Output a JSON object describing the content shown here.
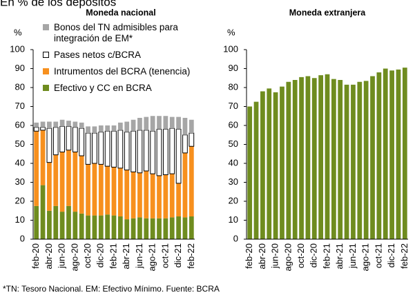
{
  "title": "En % de los depósitos",
  "note": "*TN: Tesoro Nacional. EM: Efectivo Mínimo. Fuente: BCRA",
  "chart_data": [
    {
      "type": "stacked_bar",
      "title": "Moneda nacional",
      "ylabel": "%",
      "categories": [
        "feb-20",
        null,
        "abr-20",
        null,
        "jun-20",
        null,
        "ago-20",
        null,
        "oct-20",
        null,
        "dic-20",
        null,
        "feb-21",
        null,
        "abr-21",
        null,
        "jun-21",
        null,
        "ago-21",
        null,
        "oct-21",
        null,
        "dic-21",
        null,
        "feb-22"
      ],
      "series": [
        {
          "name": "Efectivo y CC en BCRA",
          "color": "#6f8c1f",
          "values": [
            17.5,
            28.5,
            15,
            17.5,
            14.5,
            17.5,
            14.5,
            13.5,
            12.5,
            12.5,
            12.5,
            13,
            12.5,
            12,
            10.5,
            11,
            11.5,
            11,
            11,
            11,
            11,
            11.5,
            12,
            11.5,
            12
          ]
        },
        {
          "name": "Intrumentos del BCRA (tenencia)",
          "color": "#f7901e",
          "values": [
            39.5,
            29,
            25.5,
            27,
            31.5,
            29.5,
            31.5,
            30.5,
            27,
            27.5,
            27,
            25.5,
            25.5,
            25.5,
            26,
            24.5,
            23.5,
            25,
            23.5,
            22.5,
            23,
            23,
            17.5,
            34,
            37
          ]
        },
        {
          "name": "Pases netos c/BCRA",
          "color": "#ffffff",
          "values": [
            2,
            1.5,
            18,
            14.5,
            13.5,
            12.5,
            13,
            14.5,
            16.5,
            16,
            17,
            18.5,
            19,
            20,
            20,
            21.5,
            22.5,
            21.5,
            22.5,
            24.5,
            24,
            24,
            28.5,
            9.5,
            7
          ]
        },
        {
          "name": "Bonos del TN admisibles para integración de EM*",
          "color": "#a6a6a6",
          "values": [
            2.5,
            3,
            3.5,
            3,
            3.5,
            3,
            3,
            3,
            3.5,
            3.5,
            3.5,
            3,
            3,
            4,
            5.5,
            6,
            6.5,
            7,
            8,
            7,
            7,
            6,
            6.5,
            9,
            7
          ]
        }
      ],
      "ylim": [
        0,
        100
      ],
      "yticks": [
        0,
        10,
        20,
        30,
        40,
        50,
        60,
        70,
        80,
        90,
        100
      ],
      "legend": "top-left"
    },
    {
      "type": "bar",
      "title": "Moneda extranjera",
      "ylabel": "%",
      "categories": [
        "feb-20",
        null,
        "abr-20",
        null,
        "jun-20",
        null,
        "ago-20",
        null,
        "oct-20",
        null,
        "dic-20",
        null,
        "feb-21",
        null,
        "abr-21",
        null,
        "jun-21",
        null,
        "ago-21",
        null,
        "oct-21",
        null,
        "dic-21",
        null,
        "feb-22"
      ],
      "values": [
        70,
        72.5,
        78,
        79.5,
        77.5,
        80.5,
        83,
        84,
        85.5,
        86,
        85,
        86.5,
        87,
        84.5,
        84,
        81.5,
        81.5,
        83,
        83.5,
        86,
        88,
        90,
        89,
        89.5,
        90.5
      ],
      "color": "#6f8c1f",
      "ylim": [
        0,
        100
      ],
      "yticks": [
        0,
        10,
        20,
        30,
        40,
        50,
        60,
        70,
        80,
        90,
        100
      ]
    }
  ]
}
